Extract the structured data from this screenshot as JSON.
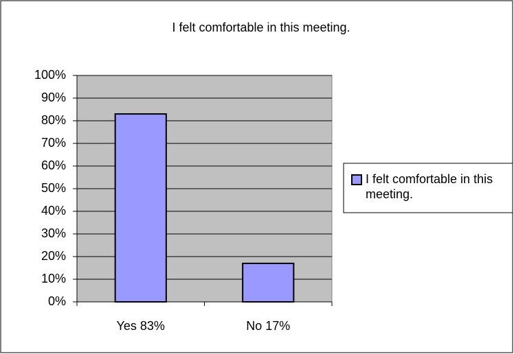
{
  "chart_data": {
    "type": "bar",
    "title": "I felt comfortable in this meeting.",
    "categories": [
      "Yes 83%",
      "No 17%"
    ],
    "series": [
      {
        "name": "I felt comfortable in this meeting.",
        "color": "#9999ff",
        "values": [
          83,
          17
        ]
      }
    ],
    "ylim": [
      0,
      100
    ],
    "yticks": [
      {
        "value": 0,
        "label": "0%"
      },
      {
        "value": 10,
        "label": "10%"
      },
      {
        "value": 20,
        "label": "20%"
      },
      {
        "value": 30,
        "label": "30%"
      },
      {
        "value": 40,
        "label": "40%"
      },
      {
        "value": 50,
        "label": "50%"
      },
      {
        "value": 60,
        "label": "60%"
      },
      {
        "value": 70,
        "label": "70%"
      },
      {
        "value": 80,
        "label": "80%"
      },
      {
        "value": 90,
        "label": "90%"
      },
      {
        "value": 100,
        "label": "100%"
      }
    ],
    "grid": true,
    "legend": "right"
  }
}
